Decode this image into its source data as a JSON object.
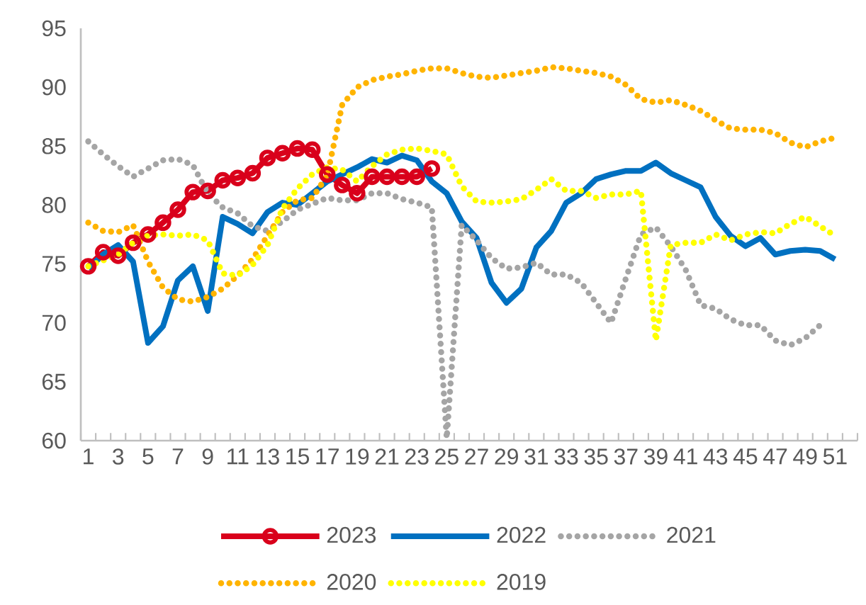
{
  "chart_data": {
    "type": "line",
    "categories": [
      "1",
      null,
      "3",
      null,
      "5",
      null,
      "7",
      null,
      "9",
      null,
      "11",
      null,
      "13",
      null,
      "15",
      null,
      "17",
      null,
      "19",
      null,
      "21",
      null,
      "23",
      null,
      "25",
      null,
      "27",
      null,
      "29",
      null,
      "31",
      null,
      "33",
      null,
      "35",
      null,
      "37",
      null,
      "39",
      null,
      "41",
      null,
      "43",
      null,
      "45",
      null,
      "47",
      null,
      "49",
      null,
      "51",
      null
    ],
    "series": [
      {
        "name": "2023",
        "color": "#d9001b",
        "line_style": "solid",
        "marker": "circle",
        "values": [
          74.8,
          76.0,
          75.7,
          76.8,
          77.5,
          78.5,
          79.6,
          81.1,
          81.2,
          82.1,
          82.3,
          82.7,
          84.0,
          84.4,
          84.8,
          84.7,
          82.6,
          81.7,
          81.0,
          82.4,
          82.4,
          82.4,
          82.4,
          83.1,
          null,
          null,
          null,
          null,
          null,
          null,
          null,
          null,
          null,
          null,
          null,
          null,
          null,
          null,
          null,
          null,
          null,
          null,
          null,
          null,
          null,
          null,
          null,
          null,
          null,
          null,
          null,
          null
        ]
      },
      {
        "name": "2022",
        "color": "#0070c0",
        "line_style": "solid",
        "marker": "none",
        "values": [
          74.6,
          75.8,
          76.6,
          75.2,
          68.3,
          69.7,
          73.6,
          74.8,
          71.0,
          79.0,
          78.4,
          77.6,
          79.4,
          80.2,
          80.0,
          81.0,
          82.0,
          82.6,
          83.2,
          83.9,
          83.6,
          84.2,
          83.8,
          82.0,
          81.0,
          78.6,
          77.2,
          73.4,
          71.7,
          72.9,
          76.4,
          77.8,
          80.2,
          81.0,
          82.2,
          82.6,
          82.9,
          82.9,
          83.6,
          82.7,
          82.1,
          81.5,
          79.0,
          77.4,
          76.5,
          77.2,
          75.8,
          76.1,
          76.2,
          76.1,
          75.4,
          null
        ]
      },
      {
        "name": "2021",
        "color": "#a5a5a5",
        "line_style": "dotted",
        "marker": "none",
        "values": [
          85.4,
          84.3,
          83.3,
          82.4,
          83.1,
          83.8,
          83.9,
          83.4,
          81.0,
          79.8,
          79.3,
          78.2,
          77.8,
          78.6,
          79.6,
          80.1,
          80.6,
          80.4,
          80.4,
          81.0,
          81.0,
          80.5,
          80.2,
          79.8,
          60.2,
          78.3,
          77.0,
          75.5,
          74.6,
          74.7,
          75.1,
          74.1,
          74.1,
          73.4,
          71.7,
          70.0,
          73.8,
          77.5,
          78.1,
          76.5,
          74.5,
          71.5,
          71.2,
          70.3,
          69.8,
          69.8,
          68.5,
          68.1,
          68.7,
          69.8,
          null,
          null
        ]
      },
      {
        "name": "2020",
        "color": "#ffb400",
        "line_style": "dotted",
        "marker": "none",
        "values": [
          78.5,
          77.8,
          77.7,
          78.3,
          75.2,
          73.0,
          72.0,
          71.8,
          72.2,
          72.9,
          74.0,
          75.4,
          77.4,
          79.4,
          80.4,
          80.6,
          82.5,
          88.5,
          90.0,
          90.6,
          90.9,
          91.1,
          91.4,
          91.6,
          91.6,
          91.2,
          90.9,
          90.8,
          91.0,
          91.2,
          91.4,
          91.7,
          91.6,
          91.4,
          91.2,
          90.9,
          90.2,
          89.0,
          88.7,
          88.9,
          88.5,
          88.0,
          87.2,
          86.5,
          86.4,
          86.4,
          86.1,
          85.3,
          84.9,
          85.4,
          85.7,
          null
        ]
      },
      {
        "name": "2019",
        "color": "#ffff00",
        "line_style": "dotted",
        "marker": "none",
        "values": [
          74.8,
          75.3,
          75.8,
          76.8,
          77.4,
          77.5,
          77.4,
          77.5,
          77.0,
          74.2,
          74.0,
          74.9,
          76.6,
          79.7,
          81.4,
          82.6,
          83.2,
          83.0,
          82.0,
          83.3,
          84.3,
          84.7,
          84.8,
          84.6,
          84.3,
          81.6,
          80.3,
          80.2,
          80.3,
          80.5,
          81.3,
          82.2,
          81.2,
          81.2,
          80.6,
          80.9,
          80.9,
          81.2,
          68.5,
          76.6,
          76.8,
          76.8,
          77.5,
          77.0,
          77.5,
          77.7,
          77.6,
          78.4,
          79.0,
          78.2,
          77.4,
          null
        ]
      }
    ],
    "ylim": [
      60,
      95
    ],
    "yticks": [
      60,
      65,
      70,
      75,
      80,
      85,
      90,
      95
    ],
    "grid": false,
    "legend": "bottom"
  }
}
